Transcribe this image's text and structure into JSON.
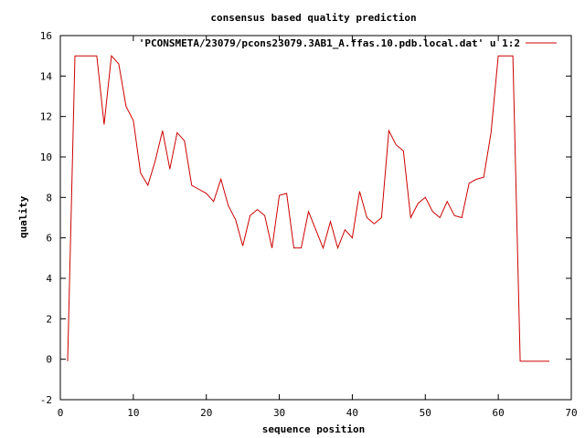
{
  "chart_data": {
    "type": "line",
    "title": "consensus based quality prediction",
    "xlabel": "sequence position",
    "ylabel": "quality",
    "xlim": [
      0,
      70
    ],
    "ylim": [
      -2,
      16
    ],
    "xticks": [
      0,
      10,
      20,
      30,
      40,
      50,
      60,
      70
    ],
    "yticks": [
      -2,
      0,
      2,
      4,
      6,
      8,
      10,
      12,
      14,
      16
    ],
    "grid": false,
    "legend_position": "top-right",
    "series": [
      {
        "name": "'PCONSMETA/23079/pcons23079.3AB1_A.ffas.10.pdb.local.dat' u 1:2",
        "color": "#cc0000",
        "x": [
          1,
          2,
          3,
          4,
          5,
          6,
          7,
          8,
          9,
          10,
          11,
          12,
          13,
          14,
          15,
          16,
          17,
          18,
          19,
          20,
          21,
          22,
          23,
          24,
          25,
          26,
          27,
          28,
          29,
          30,
          31,
          32,
          33,
          34,
          35,
          36,
          37,
          38,
          39,
          40,
          41,
          42,
          43,
          44,
          45,
          46,
          47,
          48,
          49,
          50,
          51,
          52,
          53,
          54,
          55,
          56,
          57,
          58,
          59,
          60,
          61,
          62,
          63,
          64,
          65,
          66,
          67
        ],
        "y": [
          -0.1,
          15,
          15,
          15,
          15,
          11.6,
          15,
          14.6,
          12.5,
          11.8,
          9.2,
          8.6,
          9.8,
          11.3,
          9.4,
          11.2,
          10.8,
          8.6,
          8.4,
          8.2,
          7.8,
          8.9,
          7.6,
          6.9,
          5.6,
          7.1,
          7.4,
          7.1,
          5.5,
          8.1,
          8.2,
          5.5,
          5.5,
          7.3,
          6.4,
          5.5,
          6.8,
          5.5,
          6.4,
          6.0,
          8.3,
          7.0,
          6.7,
          7.0,
          11.3,
          10.6,
          10.3,
          7.0,
          7.7,
          8.0,
          7.3,
          7.0,
          7.8,
          7.1,
          7.0,
          8.7,
          8.9,
          9.0,
          11.2,
          15,
          15,
          15,
          -0.1,
          -0.1,
          -0.1,
          -0.1,
          -0.1
        ]
      }
    ]
  }
}
